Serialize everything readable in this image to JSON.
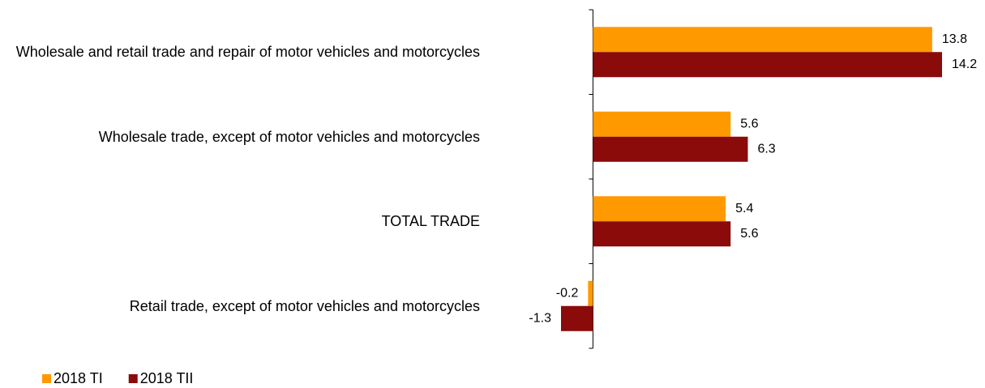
{
  "chart_data": {
    "type": "barh",
    "categories": [
      "Wholesale and retail trade and repair of motor vehicles and motorcycles",
      "Wholesale trade, except of motor vehicles and motorcycles",
      "TOTAL TRADE",
      "Retail trade, except of motor vehicles and motorcycles"
    ],
    "series": [
      {
        "name": "2018 TI",
        "color": "#FF9900",
        "values": [
          13.8,
          5.6,
          5.4,
          -0.2
        ]
      },
      {
        "name": "2018 TII",
        "color": "#8B0A0A",
        "values": [
          14.2,
          6.3,
          5.6,
          -1.3
        ]
      }
    ],
    "legend": "bottom-left"
  }
}
